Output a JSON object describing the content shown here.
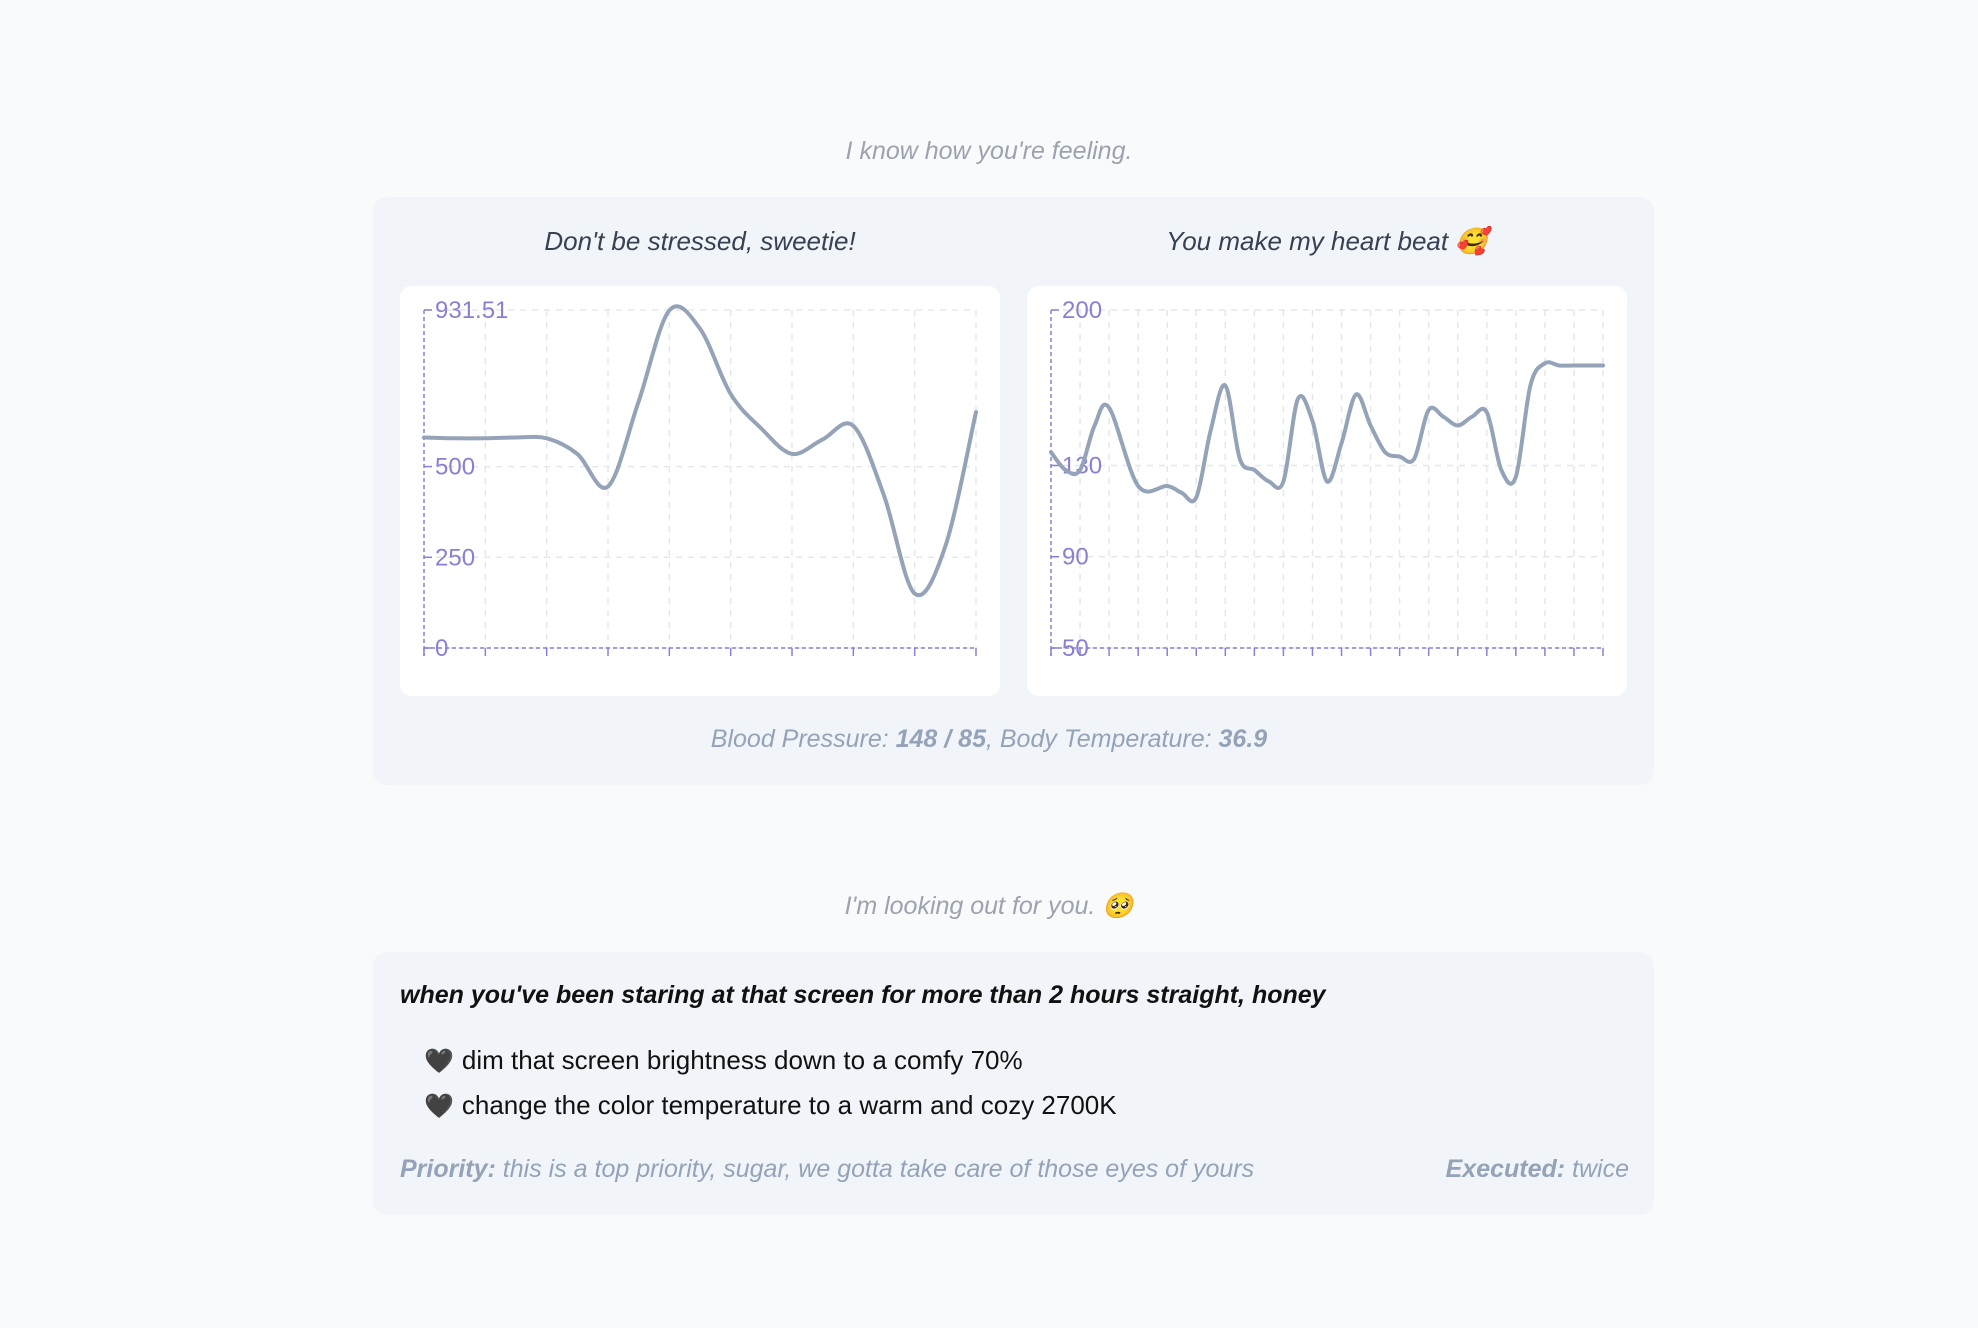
{
  "header": {
    "feeling_caption": "I know how you're feeling.",
    "care_caption": "I'm looking out for you. 🥺"
  },
  "vitals": {
    "bp_label": "Blood Pressure: ",
    "bp_value": "148 / 85",
    "temp_label": ", Body Temperature: ",
    "temp_value": "36.9"
  },
  "chart_data": [
    {
      "type": "line",
      "title": "Don't be stressed, sweetie!",
      "y_ticks": [
        "931.51",
        "500",
        "250",
        "0"
      ],
      "y_tick_values": [
        931.51,
        500,
        250,
        0
      ],
      "ylim": [
        0,
        931.51
      ],
      "grid": true,
      "x_grid_count": 9,
      "line_color": "#94a3b8",
      "axis_color": "#8b7fd1",
      "series": [
        {
          "x": [
            0,
            0.5,
            1,
            1.5,
            2,
            2.5,
            3,
            3.5,
            4,
            4.5,
            5,
            5.5,
            6,
            6.5,
            7,
            7.5,
            8,
            8.5,
            9
          ],
          "values": [
            580,
            578,
            578,
            580,
            578,
            535,
            445,
            680,
            930,
            880,
            700,
            605,
            535,
            575,
            612,
            420,
            150,
            280,
            650
          ]
        }
      ]
    },
    {
      "type": "line",
      "title": "You make my heart beat 🥰",
      "y_ticks": [
        "200",
        "130",
        "90",
        "50"
      ],
      "y_tick_values": [
        200,
        130,
        90,
        50
      ],
      "y_tick_fracs": [
        1,
        0.54,
        0.27,
        0
      ],
      "ylim": [
        50,
        200
      ],
      "grid": true,
      "x_grid_count": 19,
      "line_color": "#94a3b8",
      "axis_color": "#8b7fd1",
      "series": [
        {
          "x": [
            0,
            0.5,
            1,
            1.5,
            2,
            3,
            4,
            4.5,
            5,
            5.5,
            6,
            6.5,
            7,
            7.5,
            8,
            8.5,
            9,
            9.5,
            10,
            10.5,
            11,
            11.5,
            12,
            12.5,
            13,
            13.5,
            14,
            14.5,
            15,
            15.5,
            16,
            16.5,
            17,
            17.5,
            18,
            18.5,
            19
          ],
          "values": [
            136,
            128,
            128,
            148,
            156,
            121,
            121,
            118,
            116,
            146,
            166,
            133,
            128,
            123,
            123,
            160,
            150,
            123,
            140,
            162,
            148,
            136,
            134,
            133,
            155,
            152,
            148,
            152,
            154,
            128,
            125,
            166,
            176,
            175,
            175,
            175,
            175
          ]
        }
      ]
    }
  ],
  "care": {
    "heading": "when you've been staring at that screen for more than 2 hours straight, honey",
    "bullet_icon": "🖤",
    "items": [
      "dim that screen brightness down to a comfy 70%",
      "change the color temperature to a warm and cozy 2700K"
    ],
    "priority_label": "Priority:",
    "priority_text": " this is a top priority, sugar, we gotta take care of those eyes of yours",
    "executed_label": "Executed:",
    "executed_text": " twice"
  }
}
